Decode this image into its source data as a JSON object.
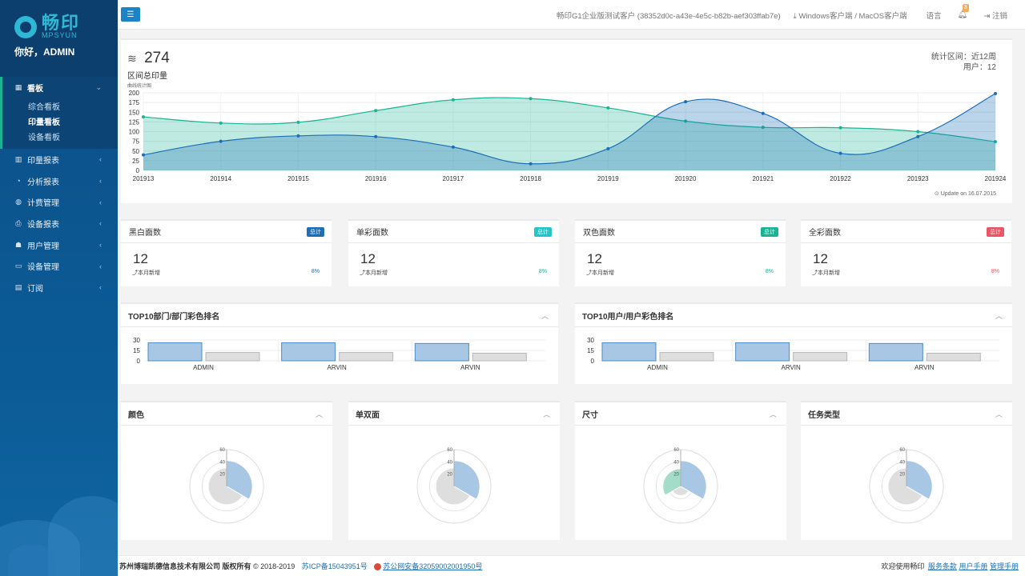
{
  "brand": {
    "name_cn": "畅印",
    "name_en": "MPSYUN"
  },
  "greeting": "你好，ADMIN",
  "nav": {
    "dashboard": {
      "label": "看板",
      "items": [
        "综合看板",
        "印量看板",
        "设备看板"
      ],
      "current": 1
    },
    "items": [
      {
        "label": "印量报表",
        "icon": "bar-chart-icon"
      },
      {
        "label": "分析报表",
        "icon": "pie-chart-icon"
      },
      {
        "label": "计费管理",
        "icon": "money-bag-icon"
      },
      {
        "label": "设备报表",
        "icon": "printer-icon"
      },
      {
        "label": "用户管理",
        "icon": "users-icon"
      },
      {
        "label": "设备管理",
        "icon": "monitor-icon"
      },
      {
        "label": "订阅",
        "icon": "book-icon"
      }
    ]
  },
  "topbar": {
    "customer": "畅印G1企业版测试客户 (38352d0c-a43e-4e5c-b82b-aef303ffab7e)",
    "clients": "Windows客户端 / MacOS客户端",
    "language": "语言",
    "notify_count": "3",
    "logout": "注销"
  },
  "overview": {
    "total": "274",
    "label": "区间总印量",
    "chart_caption": "曲线统计图",
    "range_label": "统计区间：近12周",
    "users_label": "用户：12",
    "update": "Update on 16.07.2015"
  },
  "chart_data": [
    {
      "type": "area",
      "categories": [
        "201913",
        "201914",
        "201915",
        "201916",
        "201917",
        "201918",
        "201919",
        "201920",
        "201921",
        "201922",
        "201923",
        "201924"
      ],
      "y_ticks": [
        "0",
        "25",
        "50",
        "75",
        "100",
        "125",
        "150",
        "175",
        "200"
      ],
      "ylim": [
        0,
        200
      ],
      "grid": true,
      "series": [
        {
          "values": [
            138,
            122,
            124,
            154,
            182,
            185,
            161,
            127,
            111,
            110,
            100,
            74
          ],
          "color": "#1ab394"
        },
        {
          "values": [
            40,
            75,
            89,
            87,
            60,
            17,
            56,
            177,
            147,
            44,
            87,
            198
          ],
          "color": "#1c6fb7"
        }
      ]
    },
    {
      "type": "bar",
      "title": "TOP10部门/部门彩色排名",
      "categories": [
        "ADMIN",
        "ARVIN",
        "ARVIN"
      ],
      "y_ticks": [
        "30",
        "15",
        "0"
      ],
      "ylim": [
        0,
        30
      ],
      "series": [
        {
          "values": [
            26,
            26,
            25
          ],
          "color": "#a7c7e4"
        },
        {
          "values": [
            12,
            12,
            11
          ],
          "color": "#dedede"
        }
      ]
    },
    {
      "type": "bar",
      "title": "TOP10用户/用户彩色排名",
      "categories": [
        "ADMIN",
        "ARVIN",
        "ARVIN"
      ],
      "y_ticks": [
        "30",
        "15",
        "0"
      ],
      "ylim": [
        0,
        30
      ],
      "series": [
        {
          "values": [
            26,
            26,
            25
          ],
          "color": "#a7c7e4"
        },
        {
          "values": [
            12,
            12,
            11
          ],
          "color": "#dedede"
        }
      ]
    }
  ],
  "stats": [
    {
      "title": "黑白面数",
      "badge": "总计",
      "badge_color": "#1c6fb7",
      "value": "12",
      "caption": "本月新增",
      "percent": "8%",
      "percent_color": "#1c6fb7"
    },
    {
      "title": "单彩面数",
      "badge": "总计",
      "badge_color": "#23c6c8",
      "value": "12",
      "caption": "本月新增",
      "percent": "8%",
      "percent_color": "#1ab394"
    },
    {
      "title": "双色面数",
      "badge": "总计",
      "badge_color": "#1ab394",
      "value": "12",
      "caption": "本月新增",
      "percent": "8%",
      "percent_color": "#1ab394"
    },
    {
      "title": "全彩面数",
      "badge": "总计",
      "badge_color": "#ed5565",
      "value": "12",
      "caption": "本月新增",
      "percent": "8%",
      "percent_color": "#ed5565"
    }
  ],
  "radars": [
    {
      "title": "颜色",
      "ticks": [
        "60",
        "40",
        "20"
      ],
      "max": 60,
      "sectors": [
        {
          "value": 42,
          "color": "#a7c7e4"
        },
        {
          "value": 30,
          "color": "#dedede"
        }
      ]
    },
    {
      "title": "单双面",
      "ticks": [
        "60",
        "40",
        "20"
      ],
      "max": 60,
      "sectors": [
        {
          "value": 42,
          "color": "#a7c7e4"
        },
        {
          "value": 30,
          "color": "#dedede"
        }
      ]
    },
    {
      "title": "尺寸",
      "ticks": [
        "60",
        "40",
        "20"
      ],
      "max": 60,
      "sectors": [
        {
          "value": 42,
          "color": "#a7c7e4"
        },
        {
          "value": 15,
          "color": "#dedede"
        },
        {
          "value": 29,
          "color": "#a3dcc9"
        }
      ]
    },
    {
      "title": "任务类型",
      "ticks": [
        "60",
        "40",
        "20"
      ],
      "max": 60,
      "sectors": [
        {
          "value": 42,
          "color": "#a7c7e4"
        },
        {
          "value": 30,
          "color": "#dedede"
        }
      ]
    }
  ],
  "footer": {
    "company": "苏州博瑞凯德信息技术有限公司 版权所有",
    "copyright": "© 2018-2019",
    "icp": "苏ICP备15043951号",
    "police": "苏公网安备32059002001950号",
    "welcome": "欢迎使用畅印",
    "terms": "服务条款",
    "manual": "用户手册",
    "admin_manual": "管理手册"
  }
}
